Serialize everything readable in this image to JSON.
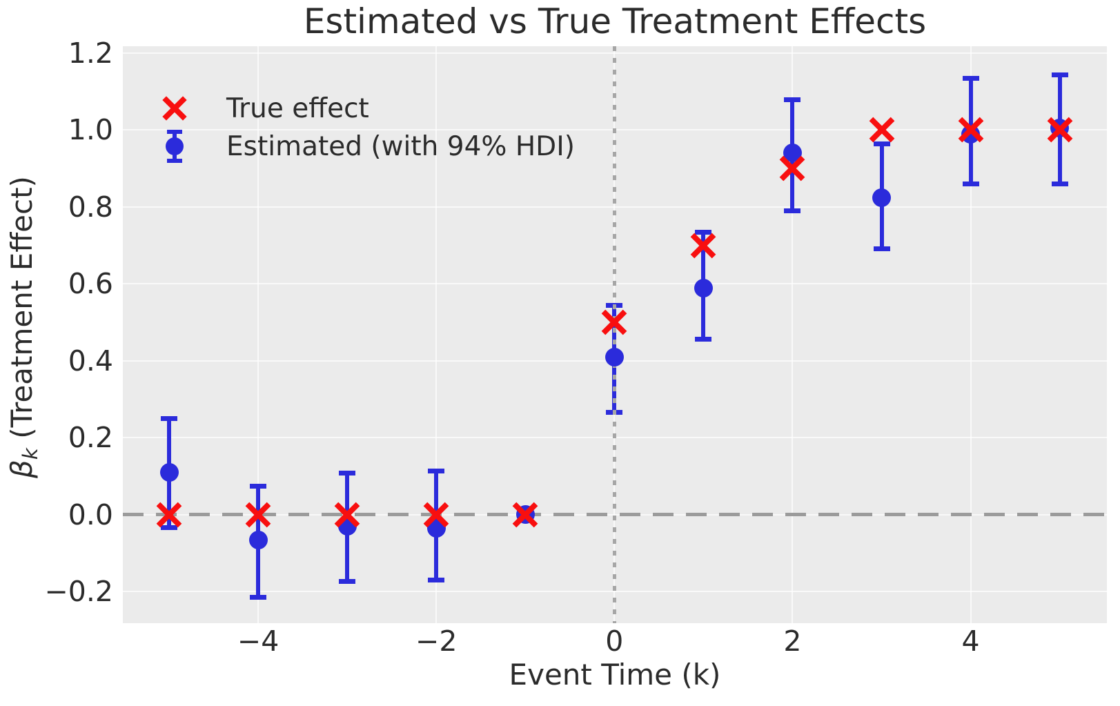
{
  "title": "Estimated vs True Treatment Effects",
  "axis": {
    "xlabel": "Event Time (k)",
    "ylabel_symbol": "β",
    "ylabel_subscript": "k",
    "ylabel_text": " (Treatment Effect)"
  },
  "legend": {
    "items": [
      {
        "label": "True effect",
        "marker": "x-marker",
        "color": "#f80f0f"
      },
      {
        "label": "Estimated (with 94% HDI)",
        "marker": "errorbar-marker",
        "color": "#2b2bdb"
      }
    ]
  },
  "colors": {
    "axes_background": "#ebebeb",
    "grid": "#ffffff",
    "text": "#2b2b2b",
    "true_effect_red": "#f80f0f",
    "estimated_blue": "#2b2bdb",
    "zero_line_gray": "#9b9b9b"
  },
  "chart_data": {
    "type": "scatter",
    "title": "Estimated vs True Treatment Effects",
    "xlabel": "Event Time (k)",
    "ylabel": "β_k (Treatment Effect)",
    "xlim": [
      -5.52,
      5.53
    ],
    "ylim": [
      -0.282,
      1.218
    ],
    "x_ticks": [
      -4,
      -2,
      0,
      2,
      4
    ],
    "y_ticks": [
      -0.2,
      0.0,
      0.2,
      0.4,
      0.6,
      0.8,
      1.0,
      1.2
    ],
    "grid": true,
    "legend_position": "upper left",
    "reference_lines": [
      {
        "orientation": "horizontal",
        "value": 0.0,
        "style": "dashed",
        "color": "#9b9b9b"
      },
      {
        "orientation": "vertical",
        "value": 0.0,
        "style": "dotted",
        "color": "#a6a6a6"
      }
    ],
    "x": [
      -5,
      -4,
      -3,
      -2,
      -1,
      0,
      1,
      2,
      3,
      4,
      5
    ],
    "series": [
      {
        "name": "True effect",
        "type": "scatter",
        "marker": "x",
        "color": "#f80f0f",
        "y": [
          0.0,
          0.0,
          0.0,
          0.0,
          0.0,
          0.5,
          0.7,
          0.9,
          1.0,
          1.0,
          1.0
        ]
      },
      {
        "name": "Estimated (with 94% HDI)",
        "type": "scatter-errorbar",
        "marker": "circle",
        "color": "#2b2bdb",
        "y": [
          0.11,
          -0.065,
          -0.03,
          -0.035,
          0.0,
          0.41,
          0.59,
          0.94,
          0.825,
          0.99,
          1.005
        ],
        "hdi_low": [
          -0.035,
          -0.215,
          -0.175,
          -0.17,
          0.0,
          0.265,
          0.455,
          0.79,
          0.69,
          0.86,
          0.86
        ],
        "hdi_high": [
          0.25,
          0.075,
          0.11,
          0.115,
          0.0,
          0.545,
          0.735,
          1.08,
          0.965,
          1.135,
          1.145
        ]
      }
    ]
  }
}
